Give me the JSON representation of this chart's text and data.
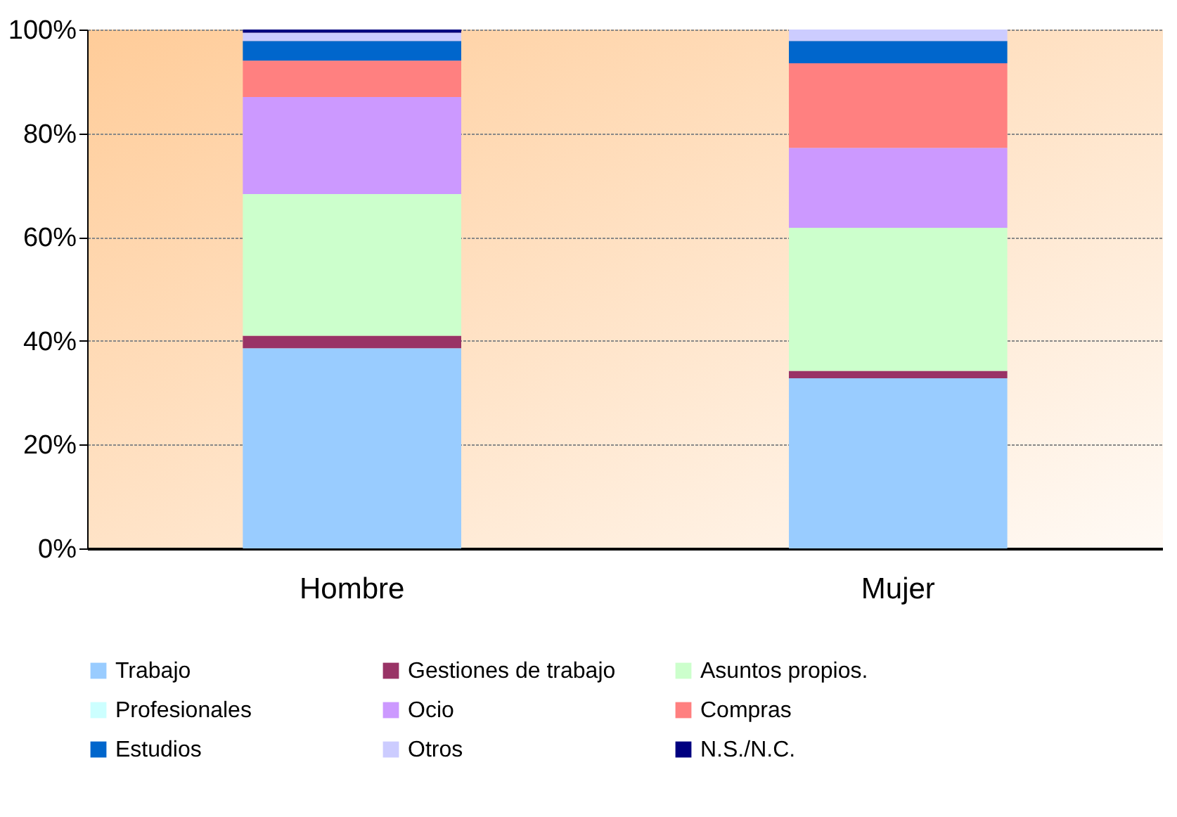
{
  "chart_data": {
    "type": "bar",
    "stacked": true,
    "categories": [
      "Hombre",
      "Mujer"
    ],
    "series": [
      {
        "name": "Trabajo",
        "color": "#99ccff",
        "values": [
          38.6,
          32.8
        ]
      },
      {
        "name": "Gestiones de trabajo",
        "color": "#993366",
        "values": [
          2.4,
          1.4
        ]
      },
      {
        "name": "Asuntos propios.",
        "color": "#ccffcc",
        "values": [
          27.3,
          27.6
        ]
      },
      {
        "name": "Profesionales",
        "color": "#ccffff",
        "values": [
          0,
          0
        ]
      },
      {
        "name": "Ocio",
        "color": "#cc99ff",
        "values": [
          18.7,
          15.4
        ]
      },
      {
        "name": "Compras",
        "color": "#ff8080",
        "values": [
          7.0,
          16.3
        ]
      },
      {
        "name": "Estudios",
        "color": "#0066cc",
        "values": [
          3.8,
          4.3
        ]
      },
      {
        "name": "Otros",
        "color": "#ccccff",
        "values": [
          1.6,
          2.2
        ]
      },
      {
        "name": "N.S./N.C.",
        "color": "#000080",
        "values": [
          0.6,
          0
        ]
      }
    ],
    "ylim": [
      0,
      100
    ],
    "yticks": [
      {
        "value": 0,
        "label": "0%"
      },
      {
        "value": 20,
        "label": "20%"
      },
      {
        "value": 40,
        "label": "40%"
      },
      {
        "value": 60,
        "label": "60%"
      },
      {
        "value": 80,
        "label": "80%"
      },
      {
        "value": 100,
        "label": "100%"
      }
    ],
    "grid": "y",
    "legend": "bottom"
  }
}
